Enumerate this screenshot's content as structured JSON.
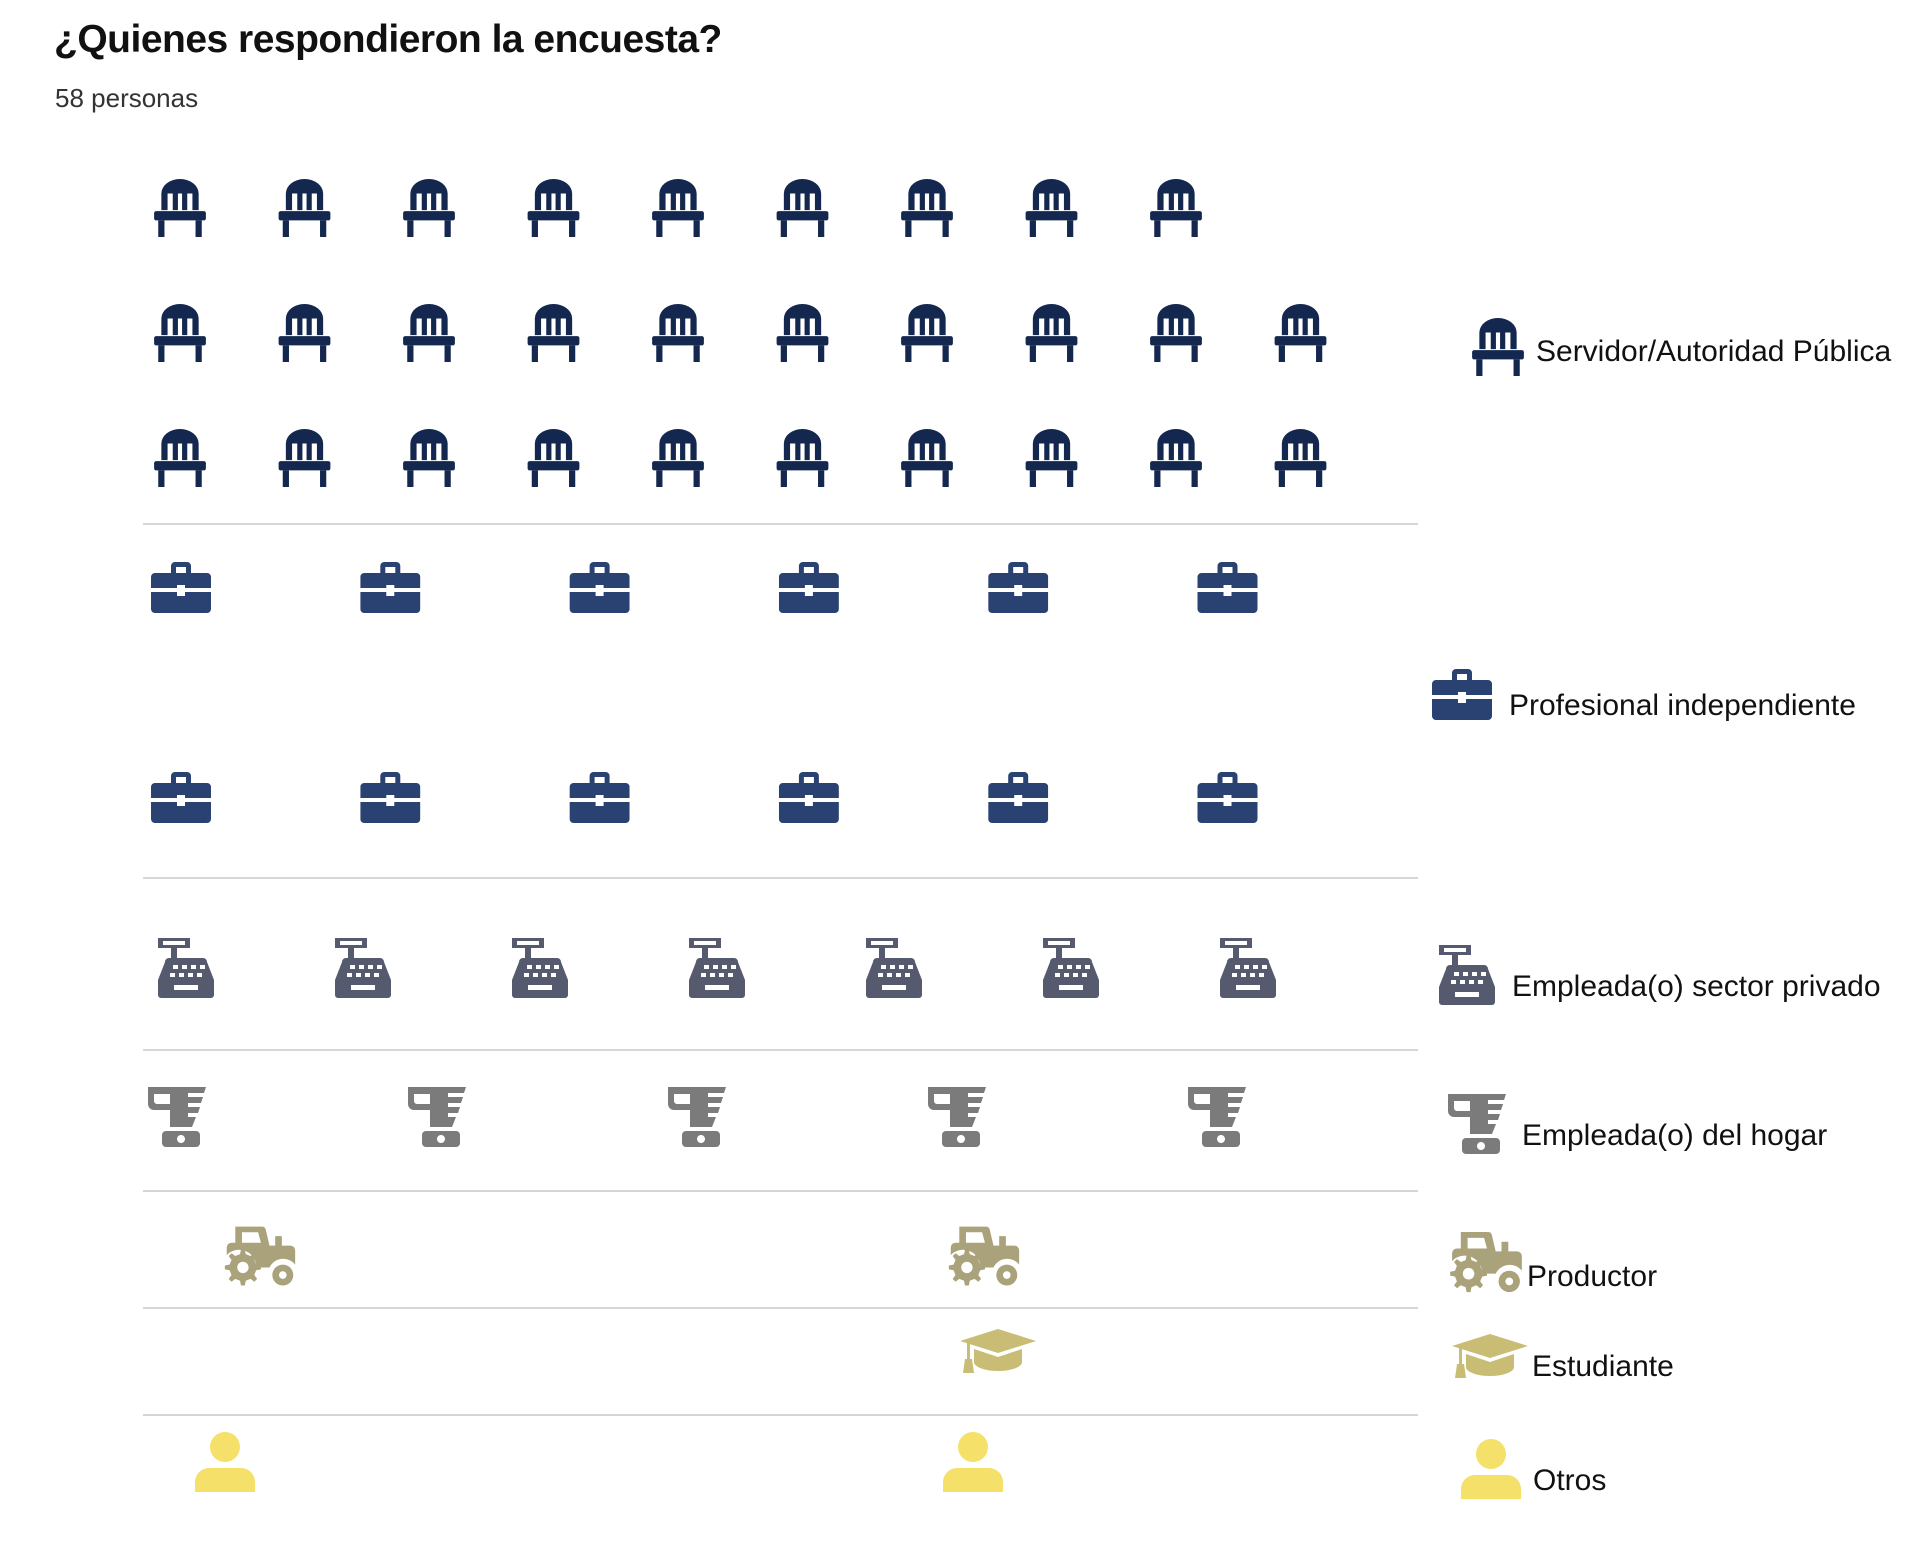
{
  "header": {
    "title": "¿Quienes respondieron la encuesta?",
    "subtitle": "58 personas"
  },
  "chart_data": {
    "type": "pictogram",
    "title": "¿Quienes respondieron la encuesta?",
    "subtitle": "58 personas",
    "total": 58,
    "categories": [
      {
        "label": "Servidor/Autoridad Pública",
        "value": 29,
        "icon": "chair-icon",
        "color": "#13274f"
      },
      {
        "label": "Profesional independiente",
        "value": 12,
        "icon": "briefcase-icon",
        "color": "#2a4272"
      },
      {
        "label": "Empleada(o) sector privado",
        "value": 7,
        "icon": "cash-register-icon",
        "color": "#555a6e"
      },
      {
        "label": "Empleada(o) del hogar",
        "value": 5,
        "icon": "blender-icon",
        "color": "#7b7b7b"
      },
      {
        "label": "Productor",
        "value": 2,
        "icon": "tractor-icon",
        "color": "#a9a27a"
      },
      {
        "label": "Estudiante",
        "value": 1,
        "icon": "graduation-cap-icon",
        "color": "#c9bd75"
      },
      {
        "label": "Otros",
        "value": 2,
        "icon": "user-icon",
        "color": "#f5e06a"
      }
    ]
  }
}
